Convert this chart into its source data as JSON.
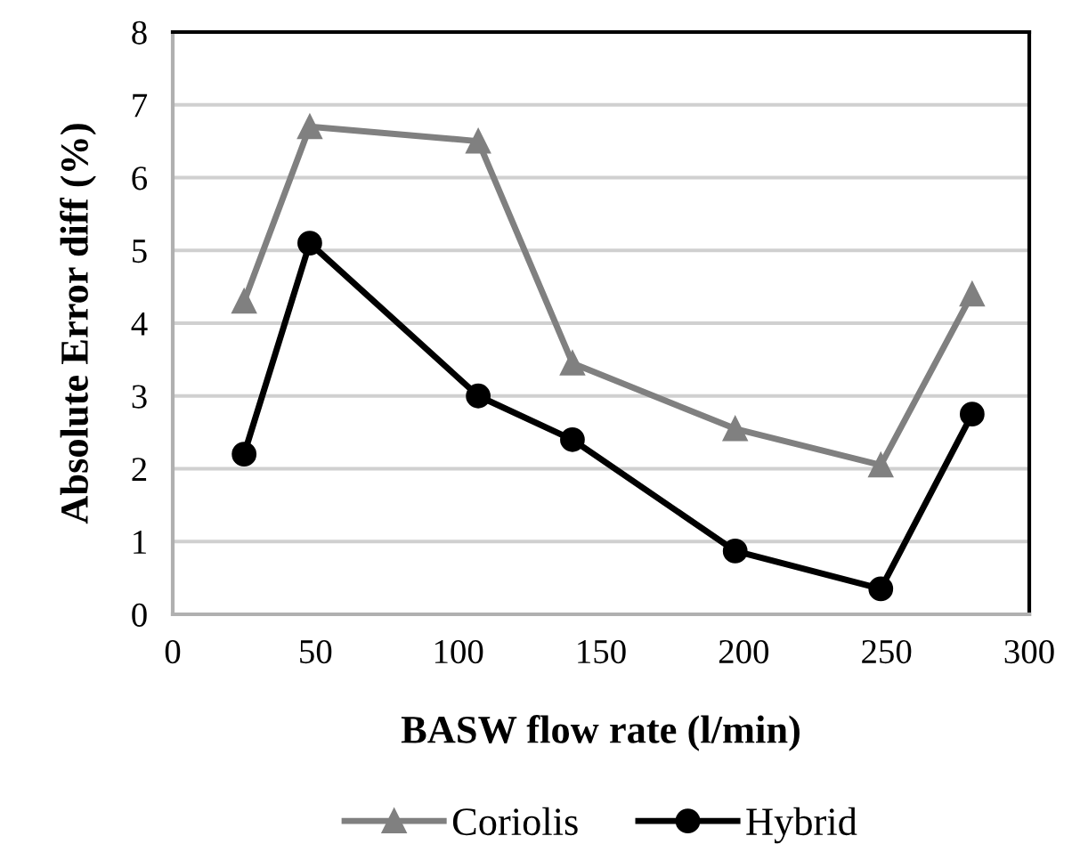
{
  "chart_data": {
    "type": "line",
    "xlabel": "BASW flow rate (l/min)",
    "ylabel": "Absolute Error diff (%)",
    "xlim": [
      0,
      300
    ],
    "xticks": [
      0,
      50,
      100,
      150,
      200,
      250,
      300
    ],
    "ylim": [
      0,
      8
    ],
    "yticks": [
      0,
      1,
      2,
      3,
      4,
      5,
      6,
      7,
      8
    ],
    "grid": "y",
    "legend": "bottom",
    "series": [
      {
        "name": "Coriolis",
        "color": "#808080",
        "marker": "triangle",
        "x": [
          25,
          48,
          107,
          140,
          197,
          248,
          280
        ],
        "values": [
          4.3,
          6.7,
          6.5,
          3.45,
          2.55,
          2.05,
          4.4
        ]
      },
      {
        "name": "Hybrid",
        "color": "#000000",
        "marker": "circle",
        "x": [
          25,
          48,
          107,
          140,
          197,
          248,
          280
        ],
        "values": [
          2.2,
          5.1,
          3.0,
          2.4,
          0.87,
          0.35,
          2.75
        ]
      }
    ]
  }
}
